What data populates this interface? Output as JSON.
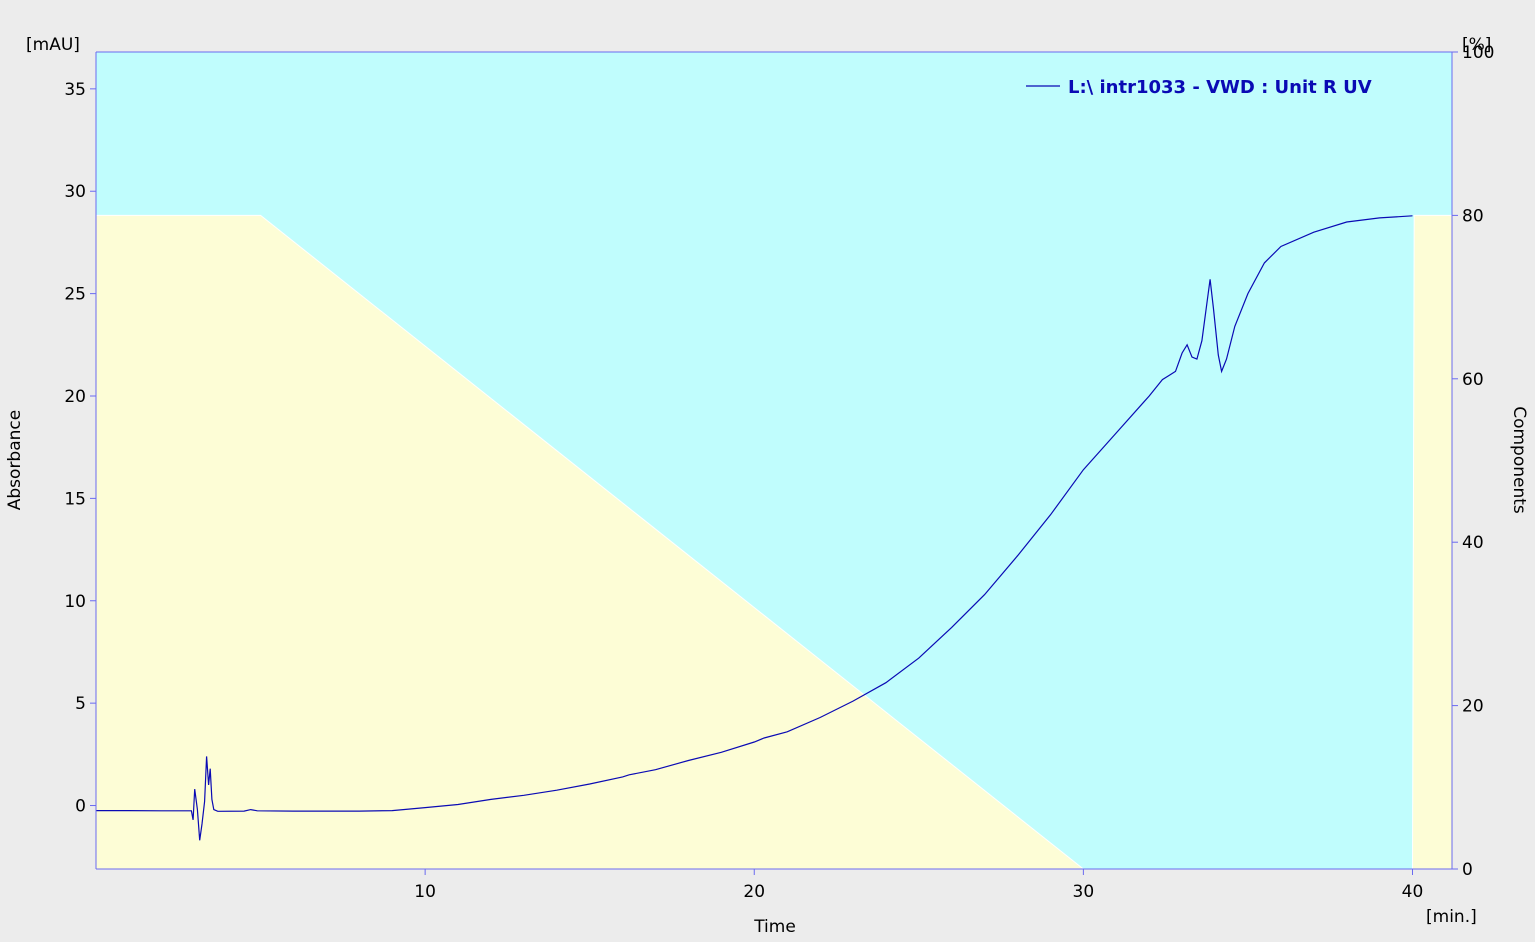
{
  "chart_data": {
    "type": "line",
    "title": "",
    "xlabel": "Time",
    "x_unit": "[min.]",
    "ylabel": "Absorbance",
    "y_unit": "[mAU]",
    "y2label": "Components",
    "y2_unit": "[%]",
    "xlim": [
      0,
      41.2
    ],
    "ylim": [
      -3.1,
      36.8
    ],
    "y2lim": [
      0,
      100
    ],
    "x_ticks": [
      10,
      20,
      30,
      40
    ],
    "y_ticks": [
      0,
      5,
      10,
      15,
      20,
      25,
      30,
      35
    ],
    "y2_ticks": [
      0,
      20,
      40,
      60,
      80,
      100
    ],
    "grid": false,
    "legend_position": "top-right",
    "colors": {
      "plot_background": "#c0fdfd",
      "gradient_fill": "#fdfdd6",
      "trace": "#0a0ab4",
      "axis": "#6a6af0",
      "page_background": "#ececec"
    },
    "gradient": {
      "name": "Components",
      "points": [
        [
          0,
          80
        ],
        [
          5,
          80
        ],
        [
          30,
          0
        ],
        [
          40,
          0
        ],
        [
          40.05,
          80
        ],
        [
          41.2,
          80
        ]
      ]
    },
    "series": [
      {
        "name": "L:\\ intr1033 - VWD : Unit R UV",
        "points": [
          [
            0,
            -0.25
          ],
          [
            1,
            -0.25
          ],
          [
            2,
            -0.26
          ],
          [
            2.9,
            -0.26
          ],
          [
            2.95,
            -0.7
          ],
          [
            3.0,
            0.8
          ],
          [
            3.08,
            -0.2
          ],
          [
            3.15,
            -1.7
          ],
          [
            3.22,
            -0.9
          ],
          [
            3.3,
            0.2
          ],
          [
            3.36,
            2.4
          ],
          [
            3.42,
            1.0
          ],
          [
            3.47,
            1.8
          ],
          [
            3.52,
            0.3
          ],
          [
            3.58,
            -0.2
          ],
          [
            3.7,
            -0.28
          ],
          [
            4.5,
            -0.27
          ],
          [
            4.7,
            -0.2
          ],
          [
            4.9,
            -0.26
          ],
          [
            6,
            -0.27
          ],
          [
            8,
            -0.27
          ],
          [
            9,
            -0.25
          ],
          [
            10,
            -0.1
          ],
          [
            11,
            0.05
          ],
          [
            12,
            0.3
          ],
          [
            13,
            0.5
          ],
          [
            14,
            0.75
          ],
          [
            15,
            1.05
          ],
          [
            16,
            1.4
          ],
          [
            16.2,
            1.5
          ],
          [
            17,
            1.75
          ],
          [
            18,
            2.2
          ],
          [
            19,
            2.6
          ],
          [
            20,
            3.1
          ],
          [
            20.3,
            3.3
          ],
          [
            21,
            3.6
          ],
          [
            22,
            4.3
          ],
          [
            23,
            5.1
          ],
          [
            24,
            6.0
          ],
          [
            25,
            7.2
          ],
          [
            26,
            8.7
          ],
          [
            27,
            10.3
          ],
          [
            28,
            12.2
          ],
          [
            29,
            14.2
          ],
          [
            30,
            16.4
          ],
          [
            31,
            18.2
          ],
          [
            32,
            20.0
          ],
          [
            32.4,
            20.8
          ],
          [
            32.6,
            21.0
          ],
          [
            32.8,
            21.2
          ],
          [
            33.0,
            22.1
          ],
          [
            33.15,
            22.5
          ],
          [
            33.3,
            21.9
          ],
          [
            33.45,
            21.8
          ],
          [
            33.6,
            22.7
          ],
          [
            33.75,
            24.5
          ],
          [
            33.85,
            25.7
          ],
          [
            33.95,
            24.3
          ],
          [
            34.1,
            22.0
          ],
          [
            34.2,
            21.2
          ],
          [
            34.35,
            21.8
          ],
          [
            34.6,
            23.4
          ],
          [
            35,
            25.0
          ],
          [
            35.5,
            26.5
          ],
          [
            36,
            27.3
          ],
          [
            37,
            28.0
          ],
          [
            38,
            28.5
          ],
          [
            39,
            28.7
          ],
          [
            40.0,
            28.8
          ]
        ]
      }
    ]
  }
}
